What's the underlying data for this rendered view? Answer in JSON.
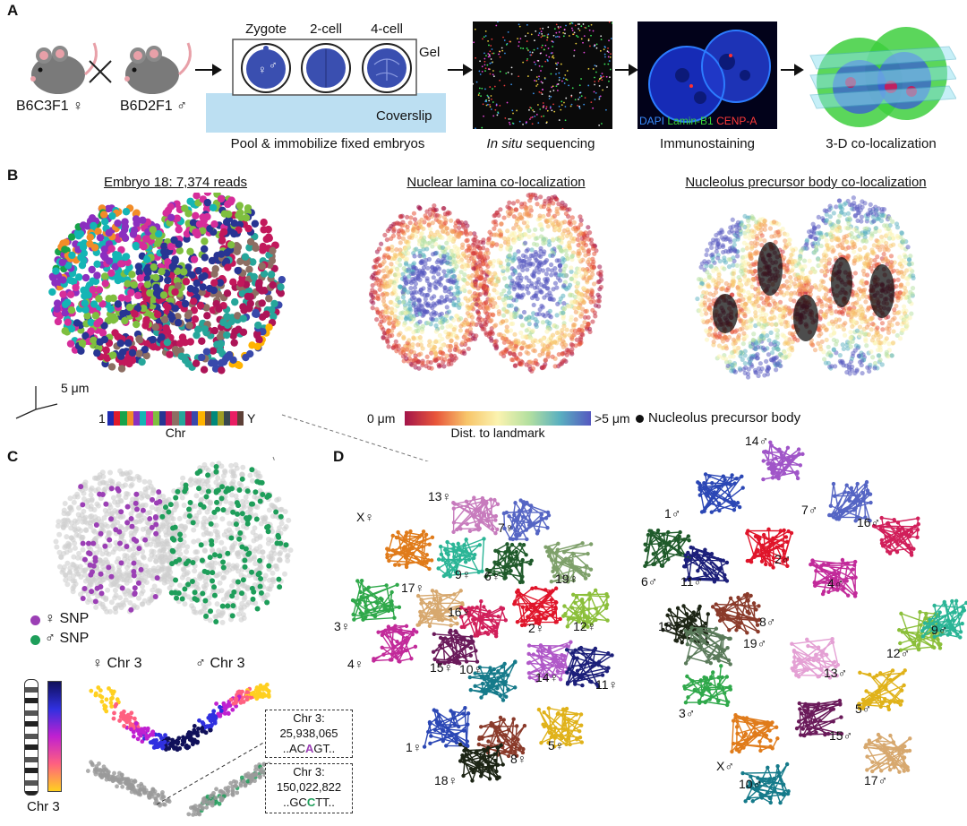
{
  "panel_letters": {
    "a": "A",
    "b": "B",
    "c": "C",
    "d": "D"
  },
  "panel_a": {
    "female_strain": "B6C3F1 ♀",
    "male_strain": "B6D2F1 ♂",
    "cross_symbol": "×",
    "stage_zygote": "Zygote",
    "stage_2cell": "2-cell",
    "stage_4cell": "4-cell",
    "gel": "Gel",
    "coverslip": "Coverslip",
    "step1": "Pool & immobilize fixed embryos",
    "step2_italic": "In situ",
    "step2_rest": " sequencing",
    "step3": "Immunostaining",
    "step4": "3-D co-localization",
    "stain_dapi": "DAPI",
    "stain_lamin": "Lamin-B1",
    "stain_cenpa": "CENP-A",
    "colors": {
      "dapi": "#2f6df0",
      "lamin": "#21c421",
      "cenpa": "#e02020",
      "embryo": "#3a4fb0",
      "coverslip": "#bcdff2"
    }
  },
  "panel_b": {
    "title1": "Embryo 18: 7,374 reads",
    "title2": "Nuclear lamina co-localization",
    "title3": "Nucleolus precursor body co-localization",
    "scale": "5 μm",
    "chr_first": "1",
    "chr_last": "Y",
    "chr_label": "Chr",
    "dist_min": "0 μm",
    "dist_max": ">5 μm",
    "dist_label": "Dist. to landmark",
    "npb_legend": "Nucleolus precursor body",
    "chr_colors": [
      "#1f2bb0",
      "#e01b2b",
      "#17a34a",
      "#f28c28",
      "#8b2fbf",
      "#14b5b5",
      "#d62d9a",
      "#7fbf3f",
      "#283593",
      "#c2185b",
      "#8d6e63",
      "#26a69a",
      "#ad1457",
      "#3949ab",
      "#ffb300",
      "#6d4c41",
      "#00897b",
      "#9e9d24",
      "#37474f",
      "#e91e63",
      "#5d4037"
    ]
  },
  "panel_c": {
    "female_snp": "♀ SNP",
    "male_snp": "♂ SNP",
    "female_chr": "♀ Chr 3",
    "male_chr": "♂ Chr 3",
    "chr3": "Chr 3",
    "box1_line1": "Chr 3:",
    "box1_line2": "25,938,065",
    "box1_pre": "..AC",
    "box1_base": "A",
    "box1_post": "GT..",
    "box2_line1": "Chr 3:",
    "box2_line2": "150,022,822",
    "box2_pre": "..GC",
    "box2_base": "C",
    "box2_post": "TT..",
    "colors": {
      "female": "#9b3fb5",
      "male": "#1e9e5a"
    }
  },
  "panel_d": {
    "female": [
      {
        "label": "13♀",
        "color": "#c77bbd"
      },
      {
        "label": "7♀",
        "color": "#5565c4"
      },
      {
        "label": "X♀",
        "color": "#e07b1a"
      },
      {
        "label": "9♀",
        "color": "#2bb596"
      },
      {
        "label": "6♀",
        "color": "#1f5a2a"
      },
      {
        "label": "19♀",
        "color": "#7ea06a"
      },
      {
        "label": "3♀",
        "color": "#2fa84a"
      },
      {
        "label": "17♀",
        "color": "#d7a86e"
      },
      {
        "label": "16♀",
        "color": "#d11f5a"
      },
      {
        "label": "2♀",
        "color": "#e0142a"
      },
      {
        "label": "12♀",
        "color": "#8bbf3a"
      },
      {
        "label": "4♀",
        "color": "#c22a9a"
      },
      {
        "label": "15♀",
        "color": "#6a1a5a"
      },
      {
        "label": "10♀",
        "color": "#157a8a"
      },
      {
        "label": "14♀",
        "color": "#b058c8"
      },
      {
        "label": "11♀",
        "color": "#1c1f7a"
      },
      {
        "label": "1♀",
        "color": "#2b47b5"
      },
      {
        "label": "8♀",
        "color": "#8a3a2a"
      },
      {
        "label": "5♀",
        "color": "#e0b21a"
      },
      {
        "label": "18♀",
        "color": "#1c2414"
      }
    ],
    "male": [
      {
        "label": "14♂",
        "color": "#a055c8"
      },
      {
        "label": "1♂",
        "color": "#2b47b5"
      },
      {
        "label": "7♂",
        "color": "#5565c4"
      },
      {
        "label": "16♂",
        "color": "#d11f5a"
      },
      {
        "label": "6♂",
        "color": "#1f5a2a"
      },
      {
        "label": "11♂",
        "color": "#1c1f7a"
      },
      {
        "label": "2♂",
        "color": "#e0142a"
      },
      {
        "label": "4♂",
        "color": "#c22a9a"
      },
      {
        "label": "18♂",
        "color": "#1c2414"
      },
      {
        "label": "8♂",
        "color": "#8a3a2a"
      },
      {
        "label": "19♂",
        "color": "#5a7a5a"
      },
      {
        "label": "12♂",
        "color": "#8bbf3a"
      },
      {
        "label": "9♂",
        "color": "#2bb596"
      },
      {
        "label": "13♂",
        "color": "#e4a0d4"
      },
      {
        "label": "3♂",
        "color": "#2fa84a"
      },
      {
        "label": "5♂",
        "color": "#e0b21a"
      },
      {
        "label": "X♂",
        "color": "#e07b1a"
      },
      {
        "label": "15♂",
        "color": "#6a1a5a"
      },
      {
        "label": "17♂",
        "color": "#d7a86e"
      },
      {
        "label": "10♂",
        "color": "#157a8a"
      }
    ]
  }
}
